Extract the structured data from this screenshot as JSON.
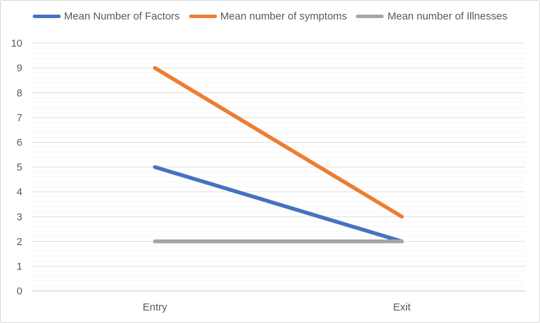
{
  "chart_data": {
    "type": "line",
    "categories": [
      "Entry",
      "Exit"
    ],
    "series": [
      {
        "name": "Mean Number of Factors",
        "color": "#4472C4",
        "values": [
          5,
          2
        ]
      },
      {
        "name": "Mean number of symptoms",
        "color": "#ED7D31",
        "values": [
          9,
          3
        ]
      },
      {
        "name": "Mean number of Illnesses",
        "color": "#A5A5A5",
        "values": [
          2,
          2
        ]
      }
    ],
    "title": "",
    "xlabel": "",
    "ylabel": "",
    "ylim": [
      0,
      10
    ],
    "y_ticks": [
      0,
      1,
      2,
      3,
      4,
      5,
      6,
      7,
      8,
      9,
      10
    ],
    "minor_tick_step": 0.2,
    "grid": true,
    "legend_position": "top"
  },
  "colors": {
    "background": "#FFFFFF",
    "border": "#D7D7D7",
    "grid_major": "#DEDEDE",
    "grid_minor": "#F4F4F4",
    "axis_line": "#C9C9C9",
    "tick_label": "#595959",
    "legend_label": "#595959"
  }
}
